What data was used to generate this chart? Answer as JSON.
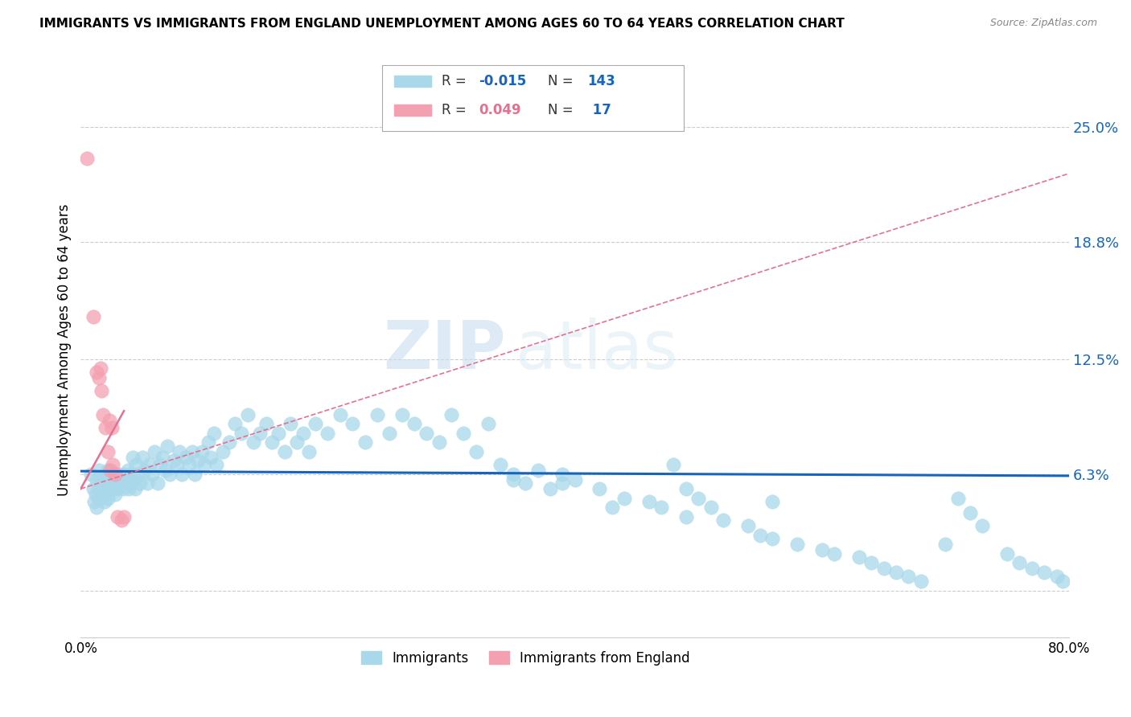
{
  "title": "IMMIGRANTS VS IMMIGRANTS FROM ENGLAND UNEMPLOYMENT AMONG AGES 60 TO 64 YEARS CORRELATION CHART",
  "source": "Source: ZipAtlas.com",
  "ylabel": "Unemployment Among Ages 60 to 64 years",
  "xlim": [
    0.0,
    0.8
  ],
  "ylim": [
    -0.025,
    0.285
  ],
  "yticks": [
    0.0,
    0.063,
    0.125,
    0.188,
    0.25
  ],
  "ytick_labels": [
    "",
    "6.3%",
    "12.5%",
    "18.8%",
    "25.0%"
  ],
  "xticks": [
    0.0,
    0.2,
    0.4,
    0.6,
    0.8
  ],
  "xtick_labels": [
    "0.0%",
    "",
    "",
    "",
    "80.0%"
  ],
  "blue_color": "#A8D8EA",
  "pink_color": "#F4A0B0",
  "line_blue": "#1565C0",
  "line_pink": "#E57090",
  "watermark_zip": "ZIP",
  "watermark_atlas": "atlas",
  "blue_scatter_x": [
    0.008,
    0.01,
    0.011,
    0.012,
    0.013,
    0.013,
    0.014,
    0.015,
    0.015,
    0.016,
    0.017,
    0.018,
    0.018,
    0.019,
    0.02,
    0.02,
    0.021,
    0.022,
    0.022,
    0.023,
    0.024,
    0.025,
    0.026,
    0.027,
    0.028,
    0.029,
    0.03,
    0.031,
    0.032,
    0.033,
    0.034,
    0.035,
    0.036,
    0.037,
    0.038,
    0.039,
    0.04,
    0.041,
    0.042,
    0.043,
    0.044,
    0.045,
    0.046,
    0.048,
    0.05,
    0.052,
    0.054,
    0.056,
    0.058,
    0.06,
    0.062,
    0.064,
    0.066,
    0.068,
    0.07,
    0.072,
    0.075,
    0.078,
    0.08,
    0.082,
    0.085,
    0.088,
    0.09,
    0.092,
    0.095,
    0.098,
    0.1,
    0.103,
    0.105,
    0.108,
    0.11,
    0.115,
    0.12,
    0.125,
    0.13,
    0.135,
    0.14,
    0.145,
    0.15,
    0.155,
    0.16,
    0.165,
    0.17,
    0.175,
    0.18,
    0.185,
    0.19,
    0.2,
    0.21,
    0.22,
    0.23,
    0.24,
    0.25,
    0.26,
    0.27,
    0.28,
    0.29,
    0.3,
    0.31,
    0.32,
    0.33,
    0.34,
    0.35,
    0.36,
    0.37,
    0.38,
    0.39,
    0.4,
    0.42,
    0.44,
    0.46,
    0.47,
    0.49,
    0.5,
    0.51,
    0.52,
    0.54,
    0.55,
    0.56,
    0.58,
    0.6,
    0.61,
    0.63,
    0.64,
    0.65,
    0.66,
    0.67,
    0.68,
    0.7,
    0.71,
    0.72,
    0.73,
    0.75,
    0.76,
    0.77,
    0.78,
    0.79,
    0.795,
    0.48,
    0.35,
    0.43,
    0.39,
    0.56,
    0.49
  ],
  "blue_scatter_y": [
    0.063,
    0.055,
    0.048,
    0.052,
    0.06,
    0.045,
    0.055,
    0.05,
    0.065,
    0.058,
    0.055,
    0.052,
    0.06,
    0.048,
    0.063,
    0.058,
    0.055,
    0.05,
    0.065,
    0.058,
    0.06,
    0.055,
    0.063,
    0.058,
    0.052,
    0.06,
    0.055,
    0.063,
    0.058,
    0.06,
    0.055,
    0.063,
    0.06,
    0.058,
    0.065,
    0.055,
    0.063,
    0.058,
    0.072,
    0.06,
    0.055,
    0.068,
    0.063,
    0.058,
    0.072,
    0.065,
    0.058,
    0.068,
    0.063,
    0.075,
    0.058,
    0.068,
    0.072,
    0.065,
    0.078,
    0.063,
    0.07,
    0.068,
    0.075,
    0.063,
    0.072,
    0.068,
    0.075,
    0.063,
    0.07,
    0.075,
    0.068,
    0.08,
    0.072,
    0.085,
    0.068,
    0.075,
    0.08,
    0.09,
    0.085,
    0.095,
    0.08,
    0.085,
    0.09,
    0.08,
    0.085,
    0.075,
    0.09,
    0.08,
    0.085,
    0.075,
    0.09,
    0.085,
    0.095,
    0.09,
    0.08,
    0.095,
    0.085,
    0.095,
    0.09,
    0.085,
    0.08,
    0.095,
    0.085,
    0.075,
    0.09,
    0.068,
    0.063,
    0.058,
    0.065,
    0.055,
    0.063,
    0.06,
    0.055,
    0.05,
    0.048,
    0.045,
    0.04,
    0.05,
    0.045,
    0.038,
    0.035,
    0.03,
    0.028,
    0.025,
    0.022,
    0.02,
    0.018,
    0.015,
    0.012,
    0.01,
    0.008,
    0.005,
    0.025,
    0.05,
    0.042,
    0.035,
    0.02,
    0.015,
    0.012,
    0.01,
    0.008,
    0.005,
    0.068,
    0.06,
    0.045,
    0.058,
    0.048,
    0.055
  ],
  "pink_scatter_x": [
    0.005,
    0.01,
    0.013,
    0.015,
    0.016,
    0.017,
    0.018,
    0.02,
    0.022,
    0.023,
    0.024,
    0.025,
    0.026,
    0.028,
    0.03,
    0.033,
    0.035
  ],
  "pink_scatter_y": [
    0.233,
    0.148,
    0.118,
    0.115,
    0.12,
    0.108,
    0.095,
    0.088,
    0.075,
    0.092,
    0.065,
    0.088,
    0.068,
    0.063,
    0.04,
    0.038,
    0.04
  ],
  "blue_trend_x": [
    0.0,
    0.8
  ],
  "blue_trend_y": [
    0.0645,
    0.062
  ],
  "pink_trend_x": [
    0.0,
    0.4
  ],
  "pink_trend_y": [
    0.063,
    0.098
  ]
}
